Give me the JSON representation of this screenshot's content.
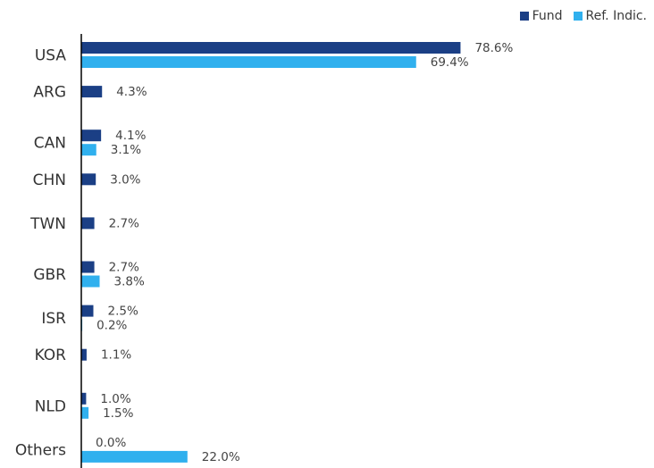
{
  "chart_data": {
    "type": "bar",
    "orientation": "horizontal",
    "categories": [
      "USA",
      "ARG",
      "CAN",
      "CHN",
      "TWN",
      "GBR",
      "ISR",
      "KOR",
      "NLD",
      "Others"
    ],
    "series": [
      {
        "name": "Fund",
        "color": "#1b3f85",
        "values": [
          78.6,
          4.3,
          4.1,
          3.0,
          2.7,
          2.7,
          2.5,
          1.1,
          1.0,
          0.0
        ],
        "labels": [
          "78.6%",
          "4.3%",
          "4.1%",
          "3.0%",
          "2.7%",
          "2.7%",
          "2.5%",
          "1.1%",
          "1.0%",
          "0.0%"
        ]
      },
      {
        "name": "Ref. Indic.",
        "color": "#30b0ee",
        "values": [
          69.4,
          null,
          3.1,
          null,
          null,
          3.8,
          0.2,
          null,
          1.5,
          22.0
        ],
        "labels": [
          "69.4%",
          null,
          "3.1%",
          null,
          null,
          "3.8%",
          "0.2%",
          null,
          "1.5%",
          "22.0%"
        ]
      }
    ],
    "legend_position": "top-right",
    "grid": false,
    "xlim": [
      0,
      80
    ]
  }
}
